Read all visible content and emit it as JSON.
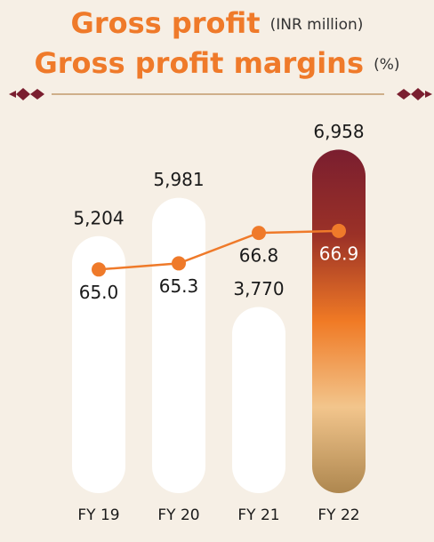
{
  "chart_data": {
    "type": "bar_line",
    "title": "Gross profit",
    "title_unit": "(INR million)",
    "subtitle": "Gross profit margins",
    "subtitle_unit": "(%)",
    "categories": [
      "FY 19",
      "FY 20",
      "FY 21",
      "FY 22"
    ],
    "series": [
      {
        "name": "Gross profit",
        "type": "bar",
        "color": "#ffffff",
        "values": [
          5204,
          5981,
          3770,
          6958
        ],
        "value_labels": [
          "5,204",
          "5,981",
          "3,770",
          "6,958"
        ]
      },
      {
        "name": "Gross profit margins",
        "type": "line",
        "axis": "y2",
        "color": "#ef7a2a",
        "values": [
          65.0,
          65.3,
          66.8,
          66.9
        ],
        "value_labels": [
          "65.0",
          "65.3",
          "66.8",
          "66.9"
        ]
      }
    ],
    "ylim": [
      0,
      7000
    ],
    "y2lim": [
      54,
      71
    ],
    "grid": false
  }
}
